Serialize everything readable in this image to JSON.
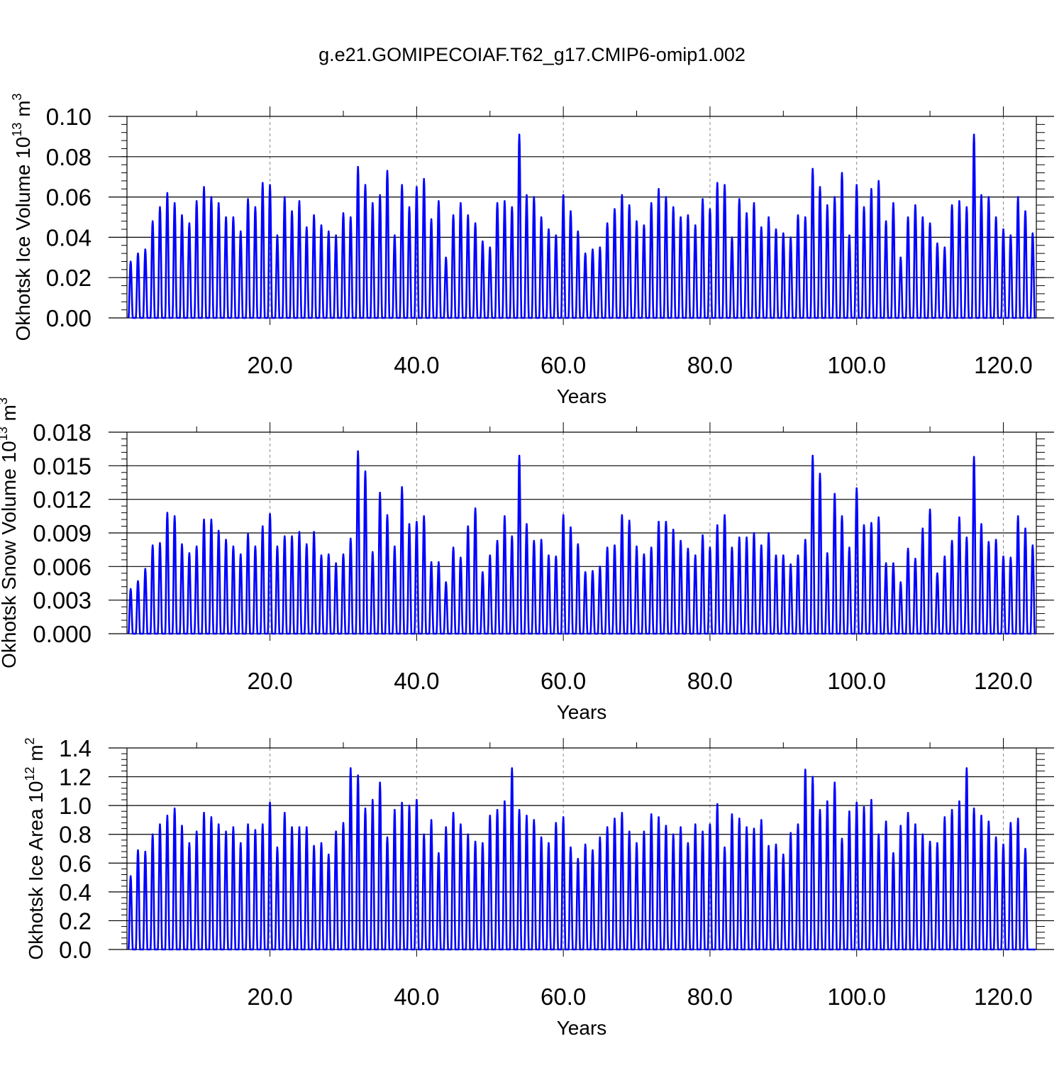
{
  "figure_title": "g.e21.GOMIPECOIAF.T62_g17.CMIP6-omip1.002",
  "series_color": "#0000ff",
  "chart_data": [
    {
      "type": "line",
      "title": "g.e21.GOMIPECOIAF.T62_g17.CMIP6-omip1.002",
      "xlabel": "Years",
      "ylabel_main": "Okhotsk Ice Volume 10",
      "ylabel_exp": "13",
      "ylabel_unit": " m",
      "ylabel_unit_exp": "3",
      "xlim": [
        0.5,
        124.5
      ],
      "ylim": [
        0,
        0.1
      ],
      "xticks": [
        20,
        40,
        60,
        80,
        100,
        120
      ],
      "xtick_labels": [
        "20.0",
        "40.0",
        "60.0",
        "80.0",
        "100.0",
        "120.0"
      ],
      "yticks": [
        0,
        0.02,
        0.04,
        0.06,
        0.08,
        0.1
      ],
      "ytick_labels": [
        "0.00",
        "0.02",
        "0.04",
        "0.06",
        "0.08",
        "0.10"
      ],
      "grid": "dashed vertical at x ticks",
      "series": [
        {
          "name": "Okhotsk Ice Volume",
          "peaks": [
            0.028,
            0.032,
            0.034,
            0.048,
            0.055,
            0.062,
            0.057,
            0.051,
            0.047,
            0.058,
            0.065,
            0.06,
            0.057,
            0.05,
            0.05,
            0.043,
            0.059,
            0.055,
            0.067,
            0.066,
            0.041,
            0.06,
            0.053,
            0.058,
            0.045,
            0.051,
            0.046,
            0.043,
            0.041,
            0.052,
            0.05,
            0.075,
            0.066,
            0.057,
            0.061,
            0.073,
            0.041,
            0.066,
            0.055,
            0.065,
            0.069,
            0.049,
            0.058,
            0.03,
            0.051,
            0.057,
            0.051,
            0.047,
            0.038,
            0.035,
            0.057,
            0.058,
            0.055,
            0.091,
            0.061,
            0.06,
            0.05,
            0.044,
            0.041,
            0.061,
            0.053,
            0.043,
            0.032,
            0.034,
            0.035,
            0.047,
            0.054,
            0.061,
            0.056,
            0.048,
            0.046,
            0.057,
            0.064,
            0.06,
            0.055,
            0.05,
            0.051,
            0.046,
            0.059,
            0.054,
            0.067,
            0.066,
            0.04,
            0.059,
            0.052,
            0.057,
            0.045,
            0.05,
            0.044,
            0.042,
            0.04,
            0.051,
            0.05,
            0.074,
            0.065,
            0.056,
            0.06,
            0.072,
            0.041,
            0.066,
            0.055,
            0.064,
            0.068,
            0.048,
            0.057,
            0.03,
            0.05,
            0.056,
            0.05,
            0.047,
            0.037,
            0.035,
            0.056,
            0.058,
            0.055,
            0.091,
            0.061,
            0.06,
            0.05,
            0.044,
            0.041,
            0.06,
            0.053,
            0.042
          ]
        }
      ]
    },
    {
      "type": "line",
      "xlabel": "Years",
      "ylabel_main": "Okhotsk Snow Volume 10",
      "ylabel_exp": "13",
      "ylabel_unit": " m",
      "ylabel_unit_exp": "3",
      "xlim": [
        0.5,
        124.5
      ],
      "ylim": [
        0,
        0.018
      ],
      "xticks": [
        20,
        40,
        60,
        80,
        100,
        120
      ],
      "xtick_labels": [
        "20.0",
        "40.0",
        "60.0",
        "80.0",
        "100.0",
        "120.0"
      ],
      "yticks": [
        0,
        0.003,
        0.006,
        0.009,
        0.012,
        0.015,
        0.018
      ],
      "ytick_labels": [
        "0.000",
        "0.003",
        "0.006",
        "0.009",
        "0.012",
        "0.015",
        "0.018"
      ],
      "grid": "dashed vertical at x ticks",
      "series": [
        {
          "name": "Okhotsk Snow Volume",
          "peaks": [
            0.004,
            0.0047,
            0.0058,
            0.0079,
            0.0081,
            0.0108,
            0.0105,
            0.008,
            0.0072,
            0.0078,
            0.0102,
            0.0102,
            0.0092,
            0.0084,
            0.0078,
            0.0071,
            0.0089,
            0.0078,
            0.0096,
            0.0107,
            0.0078,
            0.0087,
            0.0087,
            0.0091,
            0.008,
            0.0091,
            0.007,
            0.0071,
            0.0063,
            0.0071,
            0.0085,
            0.0163,
            0.0145,
            0.0073,
            0.0126,
            0.0106,
            0.0078,
            0.0131,
            0.0098,
            0.01,
            0.0105,
            0.0064,
            0.0064,
            0.0046,
            0.0077,
            0.0068,
            0.0096,
            0.0112,
            0.0055,
            0.007,
            0.0083,
            0.0105,
            0.0087,
            0.0159,
            0.0098,
            0.0083,
            0.0084,
            0.007,
            0.0069,
            0.0106,
            0.0095,
            0.008,
            0.0055,
            0.0056,
            0.006,
            0.0077,
            0.0079,
            0.0106,
            0.0101,
            0.0078,
            0.0071,
            0.0077,
            0.01,
            0.01,
            0.0093,
            0.0083,
            0.0076,
            0.007,
            0.0088,
            0.0077,
            0.0097,
            0.0106,
            0.0077,
            0.0086,
            0.0086,
            0.009,
            0.0079,
            0.009,
            0.007,
            0.007,
            0.0062,
            0.007,
            0.0084,
            0.0159,
            0.0143,
            0.0072,
            0.0125,
            0.0105,
            0.0077,
            0.013,
            0.0097,
            0.0099,
            0.0104,
            0.0063,
            0.0063,
            0.0046,
            0.0076,
            0.0067,
            0.0094,
            0.0111,
            0.0054,
            0.0069,
            0.0083,
            0.0104,
            0.0086,
            0.0158,
            0.0098,
            0.0082,
            0.0084,
            0.0069,
            0.0068,
            0.0105,
            0.0094,
            0.0079
          ]
        }
      ]
    },
    {
      "type": "line",
      "xlabel": "Years",
      "ylabel_main": "Okhotsk Ice Area 10",
      "ylabel_exp": "12",
      "ylabel_unit": " m",
      "ylabel_unit_exp": "2",
      "xlim": [
        0.5,
        124.5
      ],
      "ylim": [
        0,
        1.4
      ],
      "xticks": [
        20,
        40,
        60,
        80,
        100,
        120
      ],
      "xtick_labels": [
        "20.0",
        "40.0",
        "60.0",
        "80.0",
        "100.0",
        "120.0"
      ],
      "yticks": [
        0,
        0.2,
        0.4,
        0.6,
        0.8,
        1.0,
        1.2,
        1.4
      ],
      "ytick_labels": [
        "0.0",
        "0.2",
        "0.4",
        "0.6",
        "0.8",
        "1.0",
        "1.2",
        "1.4"
      ],
      "grid": "dashed vertical at x ticks",
      "series": [
        {
          "name": "Okhotsk Ice Area",
          "peaks": [
            0.51,
            0.69,
            0.68,
            0.8,
            0.87,
            0.93,
            0.98,
            0.86,
            0.74,
            0.82,
            0.95,
            0.92,
            0.87,
            0.82,
            0.85,
            0.74,
            0.87,
            0.83,
            0.87,
            1.02,
            0.71,
            0.95,
            0.85,
            0.85,
            0.85,
            0.72,
            0.74,
            0.66,
            0.82,
            0.88,
            1.26,
            1.21,
            0.98,
            1.04,
            1.16,
            0.78,
            0.97,
            1.02,
            1.0,
            1.04,
            0.8,
            0.9,
            0.67,
            0.85,
            0.95,
            0.87,
            0.8,
            0.75,
            0.74,
            0.93,
            0.97,
            1.03,
            1.26,
            0.97,
            0.93,
            0.9,
            0.78,
            0.74,
            0.88,
            0.92,
            0.71,
            0.63,
            0.73,
            0.69,
            0.78,
            0.85,
            0.91,
            0.95,
            0.82,
            0.74,
            0.82,
            0.94,
            0.92,
            0.86,
            0.8,
            0.85,
            0.74,
            0.87,
            0.82,
            0.87,
            1.01,
            0.71,
            0.94,
            0.91,
            0.85,
            0.84,
            0.9,
            0.72,
            0.73,
            0.66,
            0.81,
            0.87,
            1.25,
            1.2,
            0.97,
            1.03,
            1.16,
            0.77,
            0.96,
            1.02,
            0.99,
            1.04,
            0.8,
            0.89,
            0.67,
            0.86,
            0.95,
            0.87,
            0.8,
            0.75,
            0.74,
            0.92,
            0.97,
            1.03,
            1.26,
            0.98,
            0.93,
            0.89,
            0.78,
            0.73,
            0.88,
            0.91,
            0.7
          ]
        }
      ]
    }
  ]
}
